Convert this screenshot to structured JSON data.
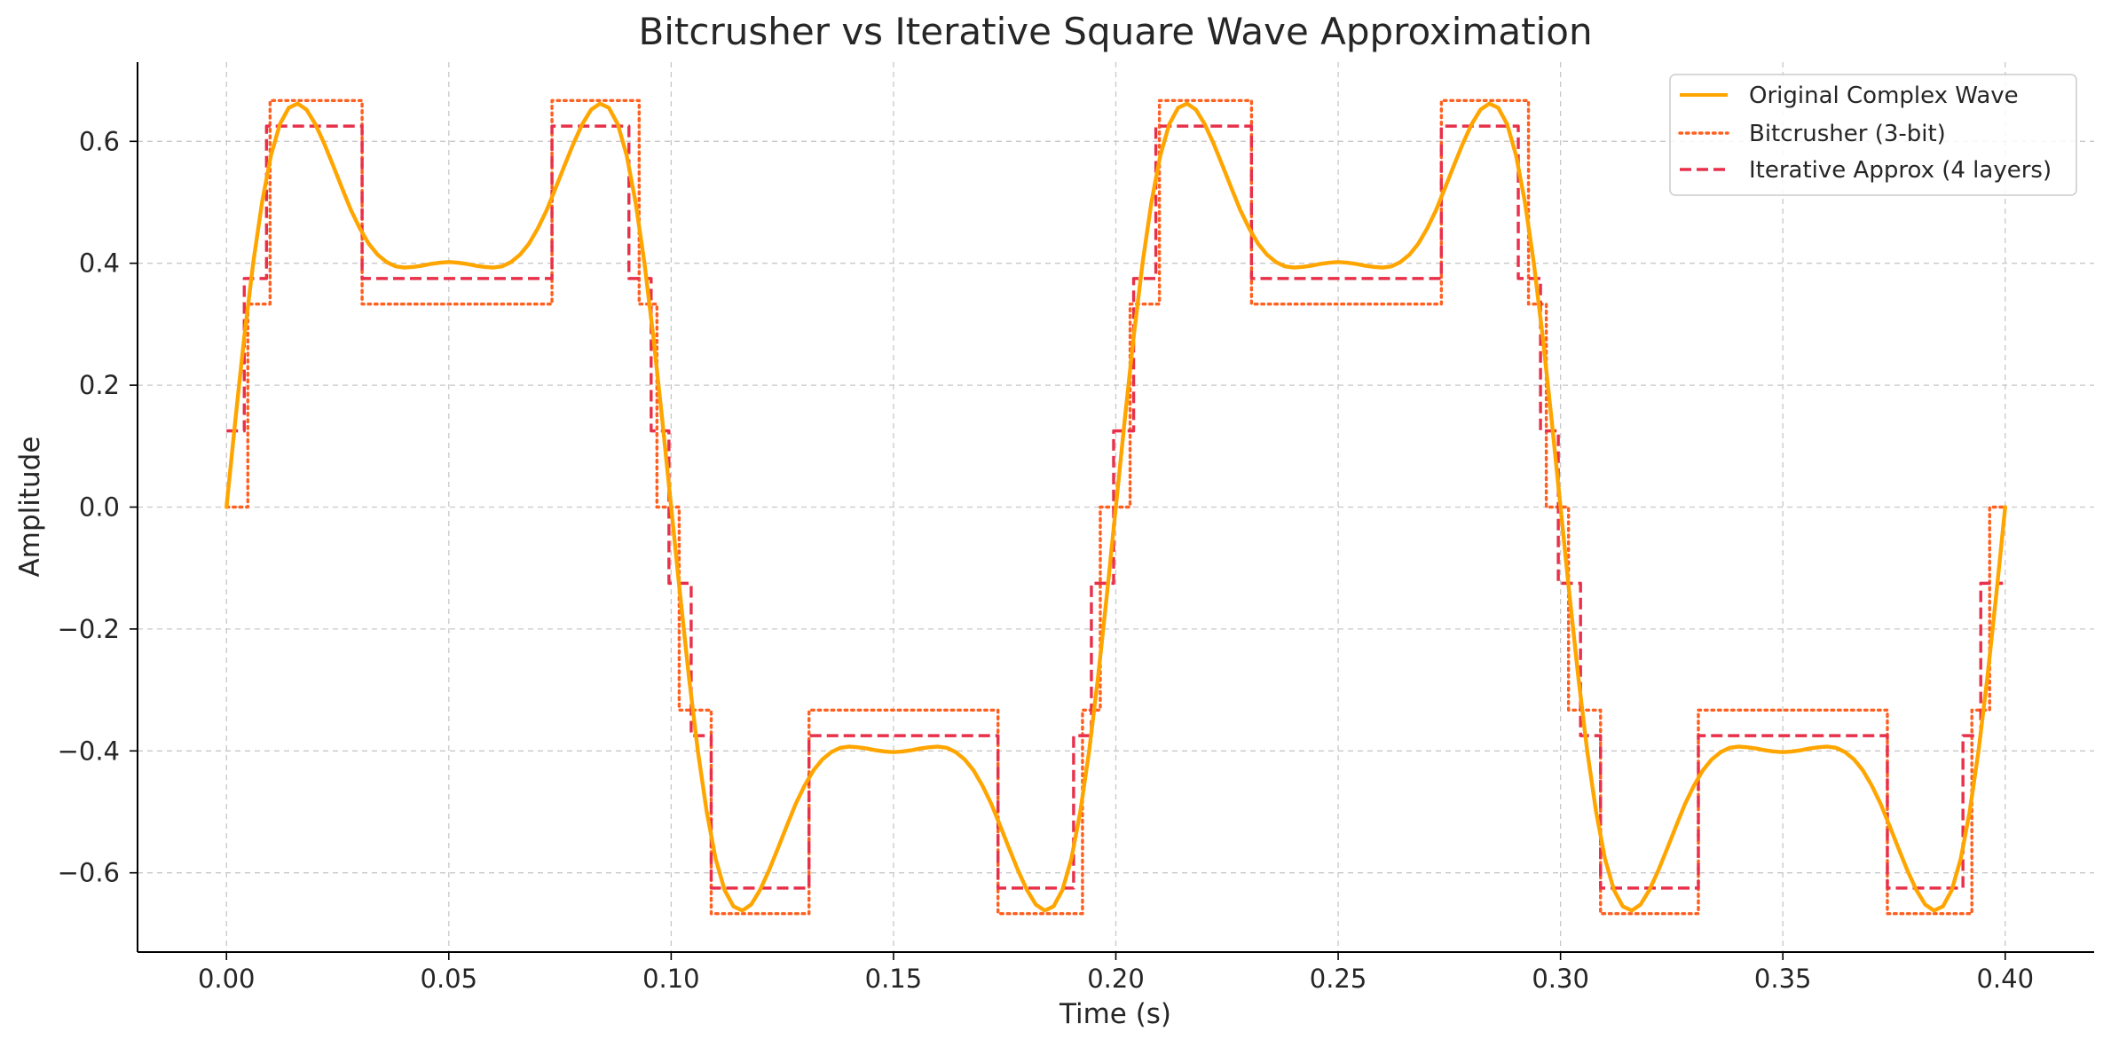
{
  "chart_data": {
    "type": "line",
    "title": "Bitcrusher vs Iterative Square Wave Approximation",
    "xlabel": "Time (s)",
    "ylabel": "Amplitude",
    "xlim": [
      -0.02,
      0.42
    ],
    "ylim": [
      -0.73,
      0.73
    ],
    "x_ticks": [
      0.0,
      0.05,
      0.1,
      0.15,
      0.2,
      0.25,
      0.3,
      0.35,
      0.4
    ],
    "x_tick_labels": [
      "0.00",
      "0.05",
      "0.10",
      "0.15",
      "0.20",
      "0.25",
      "0.30",
      "0.35",
      "0.40"
    ],
    "y_ticks": [
      -0.6,
      -0.4,
      -0.2,
      0.0,
      0.2,
      0.4,
      0.6
    ],
    "y_tick_labels": [
      "−0.6",
      "−0.4",
      "−0.2",
      "0.0",
      "0.2",
      "0.4",
      "0.6"
    ],
    "grid": true,
    "legend_position": "top-right",
    "series": [
      {
        "name": "Original Complex Wave",
        "color": "#FFA500",
        "style": "solid",
        "x": [
          0.0,
          0.002,
          0.004,
          0.006,
          0.008,
          0.01,
          0.012,
          0.014,
          0.016,
          0.018,
          0.02,
          0.022,
          0.024,
          0.026,
          0.028,
          0.03,
          0.032,
          0.034,
          0.036,
          0.038,
          0.04,
          0.042,
          0.044,
          0.046,
          0.048,
          0.05,
          0.052,
          0.054,
          0.056,
          0.058,
          0.06,
          0.062,
          0.064,
          0.066,
          0.068,
          0.07,
          0.072,
          0.074,
          0.076,
          0.078,
          0.08,
          0.082,
          0.084,
          0.086,
          0.088,
          0.09,
          0.092,
          0.094,
          0.096,
          0.098,
          0.1,
          0.102,
          0.104,
          0.106,
          0.108,
          0.11,
          0.112,
          0.114,
          0.116,
          0.118,
          0.12,
          0.122,
          0.124,
          0.126,
          0.128,
          0.13,
          0.132,
          0.134,
          0.136,
          0.138,
          0.14,
          0.142,
          0.144,
          0.146,
          0.148,
          0.15,
          0.152,
          0.154,
          0.156,
          0.158,
          0.16,
          0.162,
          0.164,
          0.166,
          0.168,
          0.17,
          0.172,
          0.174,
          0.176,
          0.178,
          0.18,
          0.182,
          0.184,
          0.186,
          0.188,
          0.19,
          0.192,
          0.194,
          0.196,
          0.198,
          0.2,
          0.202,
          0.204,
          0.206,
          0.208,
          0.21,
          0.212,
          0.214,
          0.216,
          0.218,
          0.22,
          0.222,
          0.224,
          0.226,
          0.228,
          0.23,
          0.232,
          0.234,
          0.236,
          0.238,
          0.24,
          0.242,
          0.244,
          0.246,
          0.248,
          0.25,
          0.252,
          0.254,
          0.256,
          0.258,
          0.26,
          0.262,
          0.264,
          0.266,
          0.268,
          0.27,
          0.272,
          0.274,
          0.276,
          0.278,
          0.28,
          0.282,
          0.284,
          0.286,
          0.288,
          0.29,
          0.292,
          0.294,
          0.296,
          0.298,
          0.3,
          0.302,
          0.304,
          0.306,
          0.308,
          0.31,
          0.312,
          0.314,
          0.316,
          0.318,
          0.32,
          0.322,
          0.324,
          0.326,
          0.328,
          0.33,
          0.332,
          0.334,
          0.336,
          0.338,
          0.34,
          0.342,
          0.344,
          0.346,
          0.348,
          0.35,
          0.352,
          0.354,
          0.356,
          0.358,
          0.36,
          0.362,
          0.364,
          0.366,
          0.368,
          0.37,
          0.372,
          0.374,
          0.376,
          0.378,
          0.38,
          0.382,
          0.384,
          0.386,
          0.388,
          0.39,
          0.392,
          0.394,
          0.396,
          0.398,
          0.4
        ],
        "y": [
          0.0,
          0.143,
          0.279,
          0.4,
          0.5,
          0.577,
          0.628,
          0.655,
          0.662,
          0.652,
          0.628,
          0.596,
          0.56,
          0.523,
          0.487,
          0.457,
          0.432,
          0.414,
          0.402,
          0.395,
          0.393,
          0.394,
          0.396,
          0.399,
          0.401,
          0.402,
          0.401,
          0.399,
          0.396,
          0.394,
          0.393,
          0.395,
          0.402,
          0.414,
          0.432,
          0.457,
          0.487,
          0.523,
          0.56,
          0.596,
          0.628,
          0.652,
          0.662,
          0.655,
          0.628,
          0.577,
          0.5,
          0.4,
          0.279,
          0.143,
          0.0,
          -0.143,
          -0.279,
          -0.4,
          -0.5,
          -0.577,
          -0.628,
          -0.655,
          -0.662,
          -0.652,
          -0.628,
          -0.596,
          -0.56,
          -0.523,
          -0.487,
          -0.457,
          -0.432,
          -0.414,
          -0.402,
          -0.395,
          -0.393,
          -0.394,
          -0.396,
          -0.399,
          -0.401,
          -0.402,
          -0.401,
          -0.399,
          -0.396,
          -0.394,
          -0.393,
          -0.395,
          -0.402,
          -0.414,
          -0.432,
          -0.457,
          -0.487,
          -0.523,
          -0.56,
          -0.596,
          -0.628,
          -0.652,
          -0.662,
          -0.655,
          -0.628,
          -0.577,
          -0.5,
          -0.4,
          -0.279,
          -0.143,
          0.0,
          0.143,
          0.279,
          0.4,
          0.5,
          0.577,
          0.628,
          0.655,
          0.662,
          0.652,
          0.628,
          0.596,
          0.56,
          0.523,
          0.487,
          0.457,
          0.432,
          0.414,
          0.402,
          0.395,
          0.393,
          0.394,
          0.396,
          0.399,
          0.401,
          0.402,
          0.401,
          0.399,
          0.396,
          0.394,
          0.393,
          0.395,
          0.402,
          0.414,
          0.432,
          0.457,
          0.487,
          0.523,
          0.56,
          0.596,
          0.628,
          0.652,
          0.662,
          0.655,
          0.628,
          0.577,
          0.5,
          0.4,
          0.279,
          0.143,
          0.0,
          -0.143,
          -0.279,
          -0.4,
          -0.5,
          -0.577,
          -0.628,
          -0.655,
          -0.662,
          -0.652,
          -0.628,
          -0.596,
          -0.56,
          -0.523,
          -0.487,
          -0.457,
          -0.432,
          -0.414,
          -0.402,
          -0.395,
          -0.393,
          -0.394,
          -0.396,
          -0.399,
          -0.401,
          -0.402,
          -0.401,
          -0.399,
          -0.396,
          -0.394,
          -0.393,
          -0.395,
          -0.402,
          -0.414,
          -0.432,
          -0.457,
          -0.487,
          -0.523,
          -0.56,
          -0.596,
          -0.628,
          -0.652,
          -0.662,
          -0.655,
          -0.628,
          -0.577,
          -0.5,
          -0.4,
          -0.279,
          -0.143,
          0.0
        ]
      },
      {
        "name": "Bitcrusher (3-bit)",
        "color": "#FF5F1F",
        "style": "dotted",
        "x": [
          0.0,
          0.0033,
          0.0048,
          0.007,
          0.0098,
          0.0285,
          0.0305,
          0.0712,
          0.0732,
          0.0898,
          0.0928,
          0.0948,
          0.0968,
          0.0988,
          0.1,
          0.1018,
          0.1032,
          0.1058,
          0.109,
          0.128,
          0.131,
          0.1712,
          0.1735,
          0.19,
          0.1925,
          0.1945,
          0.1965,
          0.1982,
          0.2,
          0.2032,
          0.2052,
          0.207,
          0.2098,
          0.2285,
          0.2305,
          0.2712,
          0.2732,
          0.2898,
          0.2928,
          0.2948,
          0.2968,
          0.2988,
          0.3,
          0.3018,
          0.3032,
          0.3058,
          0.309,
          0.328,
          0.331,
          0.3712,
          0.3735,
          0.39,
          0.3925,
          0.3945,
          0.3965,
          0.3982,
          0.4
        ],
        "y": [
          0.0,
          0.0,
          0.333,
          0.333,
          0.667,
          0.667,
          0.333,
          0.333,
          0.667,
          0.667,
          0.333,
          0.333,
          0.0,
          0.0,
          0.0,
          -0.333,
          -0.333,
          -0.333,
          -0.667,
          -0.667,
          -0.333,
          -0.333,
          -0.667,
          -0.667,
          -0.333,
          -0.333,
          0.0,
          0.0,
          0.0,
          0.333,
          0.333,
          0.333,
          0.667,
          0.667,
          0.333,
          0.333,
          0.667,
          0.667,
          0.333,
          0.333,
          0.0,
          0.0,
          0.0,
          -0.333,
          -0.333,
          -0.333,
          -0.667,
          -0.667,
          -0.333,
          -0.333,
          -0.667,
          -0.667,
          -0.333,
          -0.333,
          0.0,
          0.0,
          0.0
        ]
      },
      {
        "name": "Iterative Approx (4 layers)",
        "color": "#E8304A",
        "style": "dashed",
        "x": [
          0.0,
          0.004,
          0.009,
          0.0285,
          0.0305,
          0.0712,
          0.0732,
          0.0905,
          0.0955,
          0.0995,
          0.1005,
          0.1045,
          0.109,
          0.128,
          0.131,
          0.1712,
          0.1735,
          0.1905,
          0.1945,
          0.1995,
          0.2005,
          0.204,
          0.209,
          0.2285,
          0.2305,
          0.2712,
          0.2732,
          0.2905,
          0.2955,
          0.2995,
          0.3005,
          0.3045,
          0.309,
          0.328,
          0.331,
          0.3712,
          0.3735,
          0.3905,
          0.3945,
          0.3995
        ],
        "y": [
          0.125,
          0.375,
          0.625,
          0.625,
          0.375,
          0.375,
          0.625,
          0.375,
          0.125,
          -0.125,
          -0.125,
          -0.375,
          -0.625,
          -0.625,
          -0.375,
          -0.375,
          -0.625,
          -0.375,
          -0.125,
          0.125,
          0.125,
          0.375,
          0.625,
          0.625,
          0.375,
          0.375,
          0.625,
          0.375,
          0.125,
          -0.125,
          -0.125,
          -0.375,
          -0.625,
          -0.625,
          -0.375,
          -0.375,
          -0.625,
          -0.375,
          -0.125,
          -0.125
        ]
      }
    ]
  }
}
